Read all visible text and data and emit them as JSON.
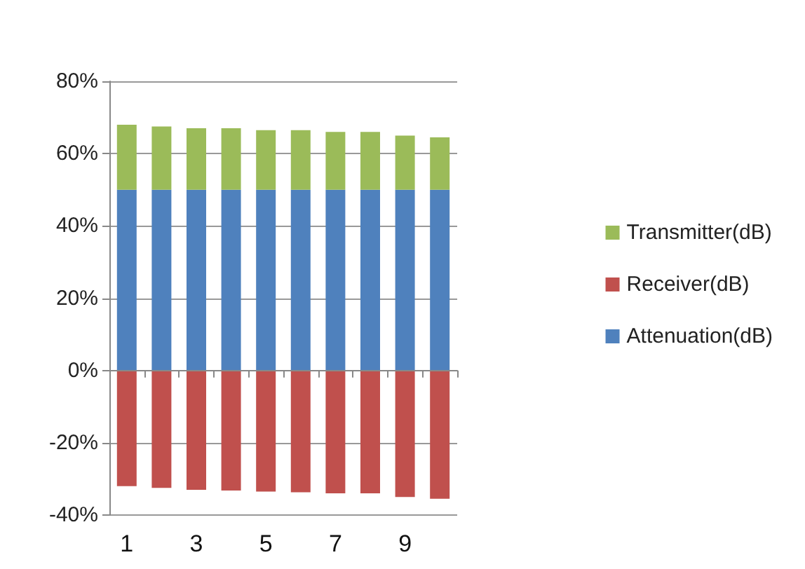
{
  "chart_data": {
    "type": "bar",
    "stacked": true,
    "categories": [
      "1",
      null,
      "3",
      null,
      "5",
      null,
      "7",
      null,
      "9",
      null
    ],
    "series": [
      {
        "name": "Attenuation(dB)",
        "color": "#4f81bd",
        "values": [
          50,
          50,
          50,
          50,
          50,
          50,
          50,
          50,
          50,
          50
        ]
      },
      {
        "name": "Receiver(dB)",
        "color": "#c0504d",
        "values": [
          -32,
          -32.5,
          -33,
          -33.2,
          -33.5,
          -33.7,
          -34,
          -34,
          -35,
          -35.5
        ]
      },
      {
        "name": "Transmitter(dB)",
        "color": "#9bbb59",
        "values": [
          18,
          17.5,
          17,
          17,
          16.5,
          16.5,
          16,
          16,
          15,
          14.5
        ]
      }
    ],
    "ylim": [
      -40,
      80
    ],
    "yticks": [
      {
        "value": -40,
        "label": "-40%"
      },
      {
        "value": -20,
        "label": "-20%"
      },
      {
        "value": 0,
        "label": "0%"
      },
      {
        "value": 20,
        "label": "20%"
      },
      {
        "value": 40,
        "label": "40%"
      },
      {
        "value": 60,
        "label": "60%"
      },
      {
        "value": 80,
        "label": "80%"
      }
    ],
    "grid": true,
    "legend": "right"
  }
}
